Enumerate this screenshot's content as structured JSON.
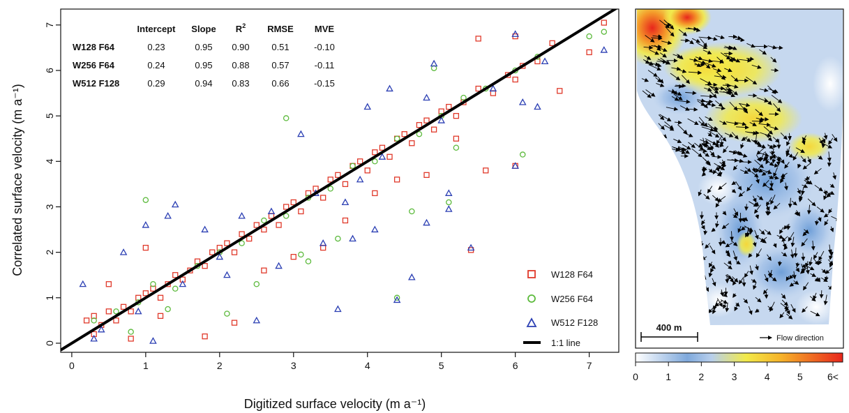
{
  "chart_data": [
    {
      "type": "scatter",
      "xlabel": "Digitized surface velocity (m a⁻¹)",
      "ylabel": "Correlated surface velocity (m a⁻¹)",
      "xlim": [
        -0.15,
        7.4
      ],
      "ylim": [
        -0.2,
        7.35
      ],
      "x_ticks": [
        "0",
        "1",
        "2",
        "3",
        "4",
        "5",
        "6",
        "7"
      ],
      "y_ticks": [
        "0",
        "1",
        "2",
        "3",
        "4",
        "5",
        "6",
        "7"
      ],
      "grid": false,
      "legend_position": "bottom-right",
      "reference_line": {
        "name": "1:1 line",
        "slope": 1,
        "intercept": 0,
        "color": "#000000"
      },
      "stats_table": {
        "headers": [
          "Intercept",
          "Slope",
          "R2",
          "RMSE",
          "MVE"
        ],
        "header_r2_base": "R",
        "header_r2_sup": "2",
        "rows": [
          {
            "name": "W128 F64",
            "values": [
              "0.23",
              "0.95",
              "0.90",
              "0.51",
              "-0.10"
            ]
          },
          {
            "name": "W256 F64",
            "values": [
              "0.24",
              "0.95",
              "0.88",
              "0.57",
              "-0.11"
            ]
          },
          {
            "name": "W512 F128",
            "values": [
              "0.29",
              "0.94",
              "0.83",
              "0.66",
              "-0.15"
            ]
          }
        ]
      },
      "series": [
        {
          "name": "W128 F64",
          "marker": "square",
          "color": "#e0392a",
          "points": [
            [
              0.2,
              0.5
            ],
            [
              0.3,
              0.6
            ],
            [
              0.4,
              0.4
            ],
            [
              0.5,
              0.7
            ],
            [
              0.6,
              0.5
            ],
            [
              0.7,
              0.8
            ],
            [
              0.8,
              0.7
            ],
            [
              0.9,
              1.0
            ],
            [
              1.0,
              1.1
            ],
            [
              1.1,
              1.2
            ],
            [
              1.2,
              1.0
            ],
            [
              1.3,
              1.3
            ],
            [
              1.4,
              1.5
            ],
            [
              1.5,
              1.4
            ],
            [
              1.6,
              1.6
            ],
            [
              1.7,
              1.8
            ],
            [
              1.8,
              1.7
            ],
            [
              1.9,
              2.0
            ],
            [
              2.0,
              2.1
            ],
            [
              2.1,
              2.2
            ],
            [
              2.2,
              2.0
            ],
            [
              2.3,
              2.4
            ],
            [
              2.4,
              2.3
            ],
            [
              2.5,
              2.6
            ],
            [
              2.6,
              2.5
            ],
            [
              2.7,
              2.8
            ],
            [
              2.8,
              2.6
            ],
            [
              2.9,
              3.0
            ],
            [
              3.0,
              3.1
            ],
            [
              3.1,
              2.9
            ],
            [
              3.2,
              3.3
            ],
            [
              3.3,
              3.4
            ],
            [
              3.4,
              3.2
            ],
            [
              3.5,
              3.6
            ],
            [
              3.6,
              3.7
            ],
            [
              3.7,
              3.5
            ],
            [
              3.8,
              3.9
            ],
            [
              3.9,
              4.0
            ],
            [
              4.0,
              3.8
            ],
            [
              4.1,
              4.2
            ],
            [
              4.2,
              4.3
            ],
            [
              4.3,
              4.1
            ],
            [
              4.4,
              4.5
            ],
            [
              4.5,
              4.6
            ],
            [
              4.6,
              4.4
            ],
            [
              4.7,
              4.8
            ],
            [
              4.8,
              4.9
            ],
            [
              4.9,
              4.7
            ],
            [
              5.0,
              5.1
            ],
            [
              5.1,
              5.2
            ],
            [
              5.2,
              5.0
            ],
            [
              5.3,
              5.3
            ],
            [
              5.5,
              5.6
            ],
            [
              5.7,
              5.5
            ],
            [
              5.9,
              5.9
            ],
            [
              6.0,
              5.8
            ],
            [
              6.1,
              6.1
            ],
            [
              6.3,
              6.2
            ],
            [
              6.5,
              6.6
            ],
            [
              7.0,
              6.4
            ],
            [
              7.2,
              7.05
            ],
            [
              0.3,
              0.2
            ],
            [
              0.5,
              1.3
            ],
            [
              0.8,
              0.1
            ],
            [
              1.0,
              2.1
            ],
            [
              1.2,
              0.6
            ],
            [
              1.8,
              0.15
            ],
            [
              2.2,
              0.45
            ],
            [
              2.6,
              1.6
            ],
            [
              3.0,
              1.9
            ],
            [
              3.4,
              2.1
            ],
            [
              3.7,
              2.7
            ],
            [
              4.1,
              3.3
            ],
            [
              4.4,
              3.6
            ],
            [
              4.8,
              3.7
            ],
            [
              5.2,
              4.5
            ],
            [
              5.4,
              2.05
            ],
            [
              5.6,
              3.8
            ],
            [
              6.0,
              3.9
            ],
            [
              6.0,
              6.75
            ],
            [
              5.5,
              6.7
            ],
            [
              6.6,
              5.55
            ]
          ]
        },
        {
          "name": "W256 F64",
          "marker": "circle",
          "color": "#5cba3c",
          "points": [
            [
              0.3,
              0.5
            ],
            [
              0.6,
              0.7
            ],
            [
              0.9,
              0.9
            ],
            [
              1.1,
              1.3
            ],
            [
              1.4,
              1.2
            ],
            [
              1.7,
              1.7
            ],
            [
              2.0,
              2.0
            ],
            [
              2.3,
              2.2
            ],
            [
              2.6,
              2.7
            ],
            [
              2.9,
              2.8
            ],
            [
              3.2,
              3.2
            ],
            [
              3.5,
              3.4
            ],
            [
              3.8,
              3.9
            ],
            [
              4.1,
              4.0
            ],
            [
              4.4,
              4.5
            ],
            [
              4.7,
              4.6
            ],
            [
              5.0,
              5.0
            ],
            [
              5.3,
              5.4
            ],
            [
              5.6,
              5.6
            ],
            [
              6.0,
              6.0
            ],
            [
              6.3,
              6.3
            ],
            [
              7.0,
              6.75
            ],
            [
              7.2,
              6.85
            ],
            [
              1.0,
              3.15
            ],
            [
              2.9,
              4.95
            ],
            [
              3.1,
              1.95
            ],
            [
              4.4,
              1.0
            ],
            [
              4.9,
              6.05
            ],
            [
              5.1,
              3.1
            ],
            [
              5.2,
              4.3
            ],
            [
              6.1,
              4.15
            ],
            [
              1.3,
              0.75
            ],
            [
              2.1,
              0.65
            ],
            [
              3.2,
              1.8
            ],
            [
              4.6,
              2.9
            ],
            [
              3.6,
              2.3
            ],
            [
              2.5,
              1.3
            ],
            [
              0.8,
              0.25
            ]
          ]
        },
        {
          "name": "W512 F128",
          "marker": "triangle",
          "color": "#2b3fb3",
          "points": [
            [
              0.15,
              1.3
            ],
            [
              0.4,
              0.3
            ],
            [
              0.7,
              2.0
            ],
            [
              1.0,
              2.6
            ],
            [
              1.3,
              2.8
            ],
            [
              1.4,
              3.05
            ],
            [
              1.8,
              2.5
            ],
            [
              2.1,
              1.5
            ],
            [
              2.3,
              2.8
            ],
            [
              2.5,
              0.5
            ],
            [
              2.8,
              1.7
            ],
            [
              3.1,
              4.6
            ],
            [
              3.4,
              2.2
            ],
            [
              3.6,
              0.75
            ],
            [
              3.7,
              3.1
            ],
            [
              3.8,
              2.3
            ],
            [
              3.9,
              3.6
            ],
            [
              4.1,
              2.5
            ],
            [
              4.4,
              0.95
            ],
            [
              4.6,
              1.45
            ],
            [
              4.8,
              2.65
            ],
            [
              4.9,
              6.15
            ],
            [
              5.1,
              2.95
            ],
            [
              5.1,
              3.3
            ],
            [
              5.4,
              2.1
            ],
            [
              6.0,
              3.9
            ],
            [
              6.1,
              5.3
            ],
            [
              6.0,
              6.8
            ],
            [
              6.3,
              5.2
            ],
            [
              6.4,
              6.2
            ],
            [
              7.2,
              6.45
            ],
            [
              0.9,
              0.7
            ],
            [
              1.5,
              1.3
            ],
            [
              2.0,
              1.9
            ],
            [
              2.7,
              2.9
            ],
            [
              3.3,
              3.3
            ],
            [
              4.2,
              4.1
            ],
            [
              5.0,
              4.9
            ],
            [
              5.7,
              5.6
            ],
            [
              0.3,
              0.1
            ],
            [
              1.1,
              0.05
            ],
            [
              4.0,
              5.2
            ],
            [
              4.3,
              5.6
            ],
            [
              4.8,
              5.4
            ]
          ]
        }
      ]
    },
    {
      "type": "heatmap",
      "title": "",
      "scale_bar_label": "400 m",
      "arrow_legend_label": "Flow direction",
      "colorbar_ticks": [
        "0",
        "1",
        "2",
        "3",
        "4",
        "5",
        "6<"
      ],
      "colorbar_range": [
        0,
        6
      ],
      "colorbar_stops": [
        {
          "value": 0,
          "color": "#ffffff"
        },
        {
          "value": 1.5,
          "color": "#7fa9dc"
        },
        {
          "value": 2.2,
          "color": "#b8cfec"
        },
        {
          "value": 3.2,
          "color": "#f2ea4a"
        },
        {
          "value": 4.2,
          "color": "#f6b42a"
        },
        {
          "value": 6,
          "color": "#e8261c"
        }
      ]
    }
  ]
}
